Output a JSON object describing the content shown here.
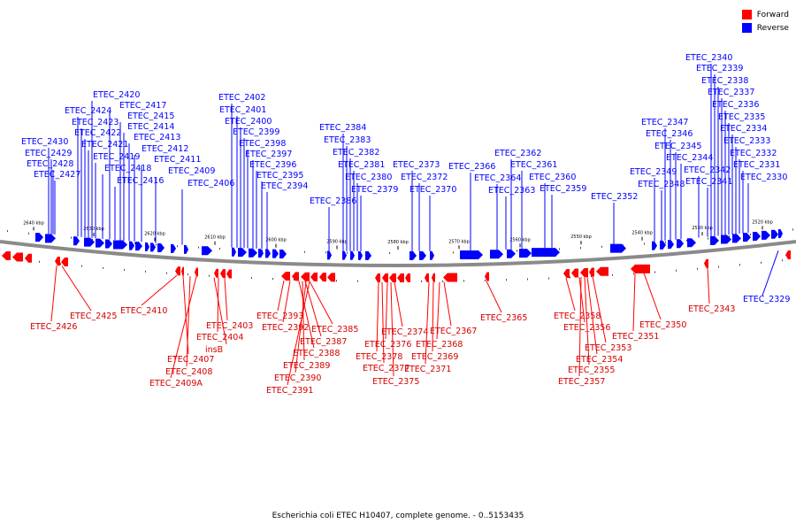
{
  "legend": {
    "forward_label": "Forward",
    "reverse_label": "Reverse",
    "forward_color": "#ff0000",
    "reverse_color": "#0000ff"
  },
  "caption": "Escherichia coli ETEC H10407, complete genome. - 0..5153435",
  "scale_labels": [
    "2640 kbp",
    "2630 kbp",
    "2620 kbp",
    "2610 kbp",
    "2600 kbp",
    "2590 kbp",
    "2580 kbp",
    "2570 kbp",
    "2560 kbp",
    "2550 kbp",
    "2540 kbp",
    "2530 kbp",
    "2520 kbp"
  ],
  "reverse_genes": [
    "ETEC_2430",
    "ETEC_2429",
    "ETEC_2428",
    "ETEC_2427",
    "ETEC_2424",
    "ETEC_2423",
    "ETEC_2422",
    "ETEC_2421",
    "ETEC_2420",
    "ETEC_2419",
    "ETEC_2418",
    "ETEC_2417",
    "ETEC_2416",
    "ETEC_2415",
    "ETEC_2414",
    "ETEC_2413",
    "ETEC_2412",
    "ETEC_2411",
    "ETEC_2409",
    "ETEC_2406",
    "ETEC_2402",
    "ETEC_2401",
    "ETEC_2400",
    "ETEC_2399",
    "ETEC_2398",
    "ETEC_2397",
    "ETEC_2396",
    "ETEC_2395",
    "ETEC_2394",
    "ETEC_2386",
    "ETEC_2384",
    "ETEC_2383",
    "ETEC_2382",
    "ETEC_2381",
    "ETEC_2380",
    "ETEC_2379",
    "ETEC_2373",
    "ETEC_2372",
    "ETEC_2370",
    "ETEC_2366",
    "ETEC_2364",
    "ETEC_2363",
    "ETEC_2362",
    "ETEC_2361",
    "ETEC_2360",
    "ETEC_2359",
    "ETEC_2352",
    "ETEC_2349",
    "ETEC_2348",
    "ETEC_2347",
    "ETEC_2346",
    "ETEC_2345",
    "ETEC_2344",
    "ETEC_2342",
    "ETEC_2341",
    "ETEC_2340",
    "ETEC_2339",
    "ETEC_2338",
    "ETEC_2337",
    "ETEC_2336",
    "ETEC_2335",
    "ETEC_2334",
    "ETEC_2333",
    "ETEC_2332",
    "ETEC_2331",
    "ETEC_2330",
    "ETEC_2329"
  ],
  "forward_genes": [
    "ETEC_2426",
    "ETEC_2425",
    "ETEC_2410",
    "ETEC_2407",
    "ETEC_2408",
    "ETEC_2409A",
    "ETEC_2403",
    "ETEC_2404",
    "insB",
    "ETEC_2393",
    "ETEC_2392",
    "ETEC_2391",
    "ETEC_2390",
    "ETEC_2389",
    "ETEC_2388",
    "ETEC_2387",
    "ETEC_2385",
    "ETEC_2378",
    "ETEC_2377",
    "ETEC_2376",
    "ETEC_2375",
    "ETEC_2374",
    "ETEC_2371",
    "ETEC_2369",
    "ETEC_2368",
    "ETEC_2367",
    "ETEC_2365",
    "ETEC_2358",
    "ETEC_2357",
    "ETEC_2356",
    "ETEC_2355",
    "ETEC_2354",
    "ETEC_2353",
    "ETEC_2351",
    "ETEC_2350",
    "ETEC_2343"
  ]
}
